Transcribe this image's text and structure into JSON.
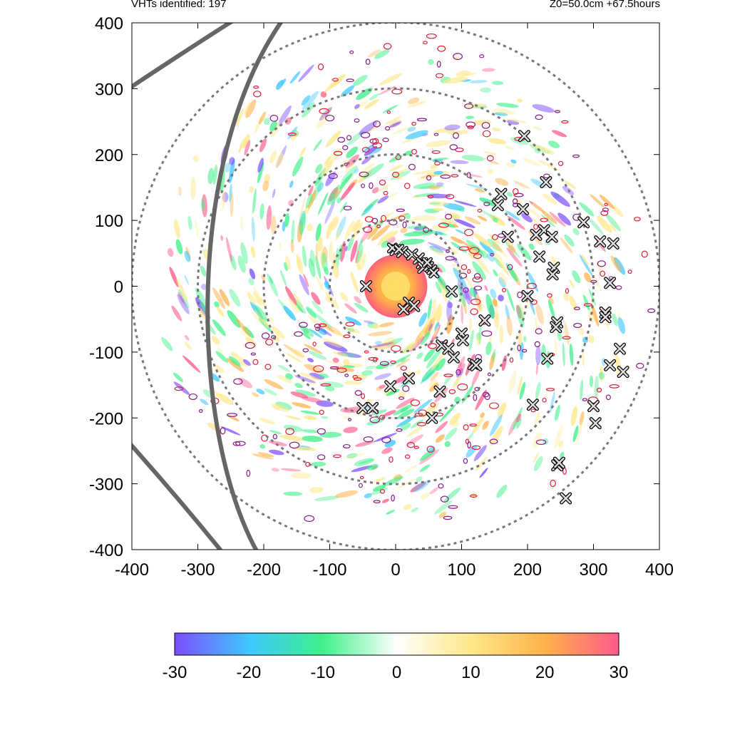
{
  "header": {
    "left_text": "VHTs identified: 197",
    "right_text": "Z0=50.0cm  +67.5hours"
  },
  "chart_data": {
    "type": "heatmap",
    "title": "",
    "xlabel": "",
    "ylabel": "",
    "xlim": [
      -400,
      400
    ],
    "ylim": [
      -400,
      400
    ],
    "x_ticks": [
      "-400",
      "-300",
      "-200",
      "-100",
      "0",
      "100",
      "200",
      "300",
      "400"
    ],
    "y_ticks": [
      "400",
      "300",
      "200",
      "100",
      "0",
      "-100",
      "-200",
      "-300",
      "-400"
    ],
    "range_rings": [
      100,
      200,
      300,
      400
    ],
    "colorbar": {
      "min": -30,
      "max": 30,
      "ticks": [
        "-30",
        "-20",
        "-10",
        "0",
        "10",
        "20",
        "30"
      ],
      "colors": [
        "#7b4dff",
        "#3ec8ff",
        "#3ff08a",
        "#ffffff",
        "#ffe88a",
        "#ffb24a",
        "#ff5a8a"
      ]
    },
    "vht_markers": [
      [
        -45,
        0
      ],
      [
        0,
        55
      ],
      [
        10,
        52
      ],
      [
        25,
        48
      ],
      [
        35,
        42
      ],
      [
        40,
        35
      ],
      [
        42,
        28
      ],
      [
        20,
        -25
      ],
      [
        28,
        -30
      ],
      [
        12,
        -35
      ],
      [
        85,
        -8
      ],
      [
        200,
        -15
      ],
      [
        218,
        45
      ],
      [
        240,
        28
      ],
      [
        238,
        18
      ],
      [
        225,
        85
      ],
      [
        213,
        78
      ],
      [
        237,
        75
      ],
      [
        170,
        75
      ],
      [
        160,
        140
      ],
      [
        155,
        123
      ],
      [
        193,
        117
      ],
      [
        195,
        228
      ],
      [
        228,
        158
      ],
      [
        285,
        97
      ],
      [
        310,
        68
      ],
      [
        330,
        65
      ],
      [
        325,
        5
      ],
      [
        318,
        -40
      ],
      [
        318,
        -47
      ],
      [
        340,
        -95
      ],
      [
        325,
        -120
      ],
      [
        345,
        -130
      ],
      [
        135,
        -52
      ],
      [
        245,
        -55
      ],
      [
        243,
        -62
      ],
      [
        230,
        -110
      ],
      [
        100,
        -72
      ],
      [
        102,
        -82
      ],
      [
        70,
        -90
      ],
      [
        80,
        -95
      ],
      [
        88,
        -108
      ],
      [
        118,
        -118
      ],
      [
        122,
        -120
      ],
      [
        67,
        -160
      ],
      [
        20,
        -140
      ],
      [
        -8,
        -152
      ],
      [
        -50,
        -185
      ],
      [
        -35,
        -185
      ],
      [
        55,
        -200
      ],
      [
        208,
        -180
      ],
      [
        300,
        -182
      ],
      [
        303,
        -208
      ],
      [
        245,
        -272
      ],
      [
        248,
        -268
      ],
      [
        258,
        -322
      ]
    ],
    "dense_markers": [
      [
        50,
        30
      ],
      [
        55,
        25
      ],
      [
        58,
        20
      ],
      [
        48,
        36
      ],
      [
        -5,
        58
      ],
      [
        5,
        56
      ]
    ]
  }
}
